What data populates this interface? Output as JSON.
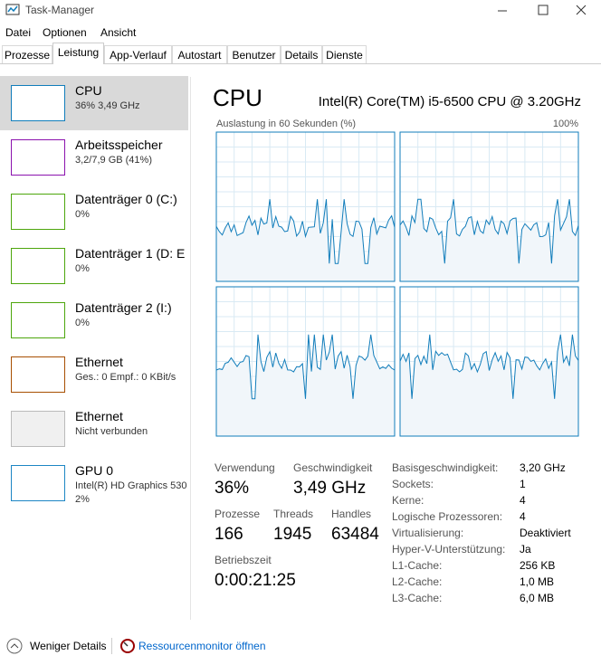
{
  "window": {
    "title": "Task-Manager"
  },
  "menu": [
    "Datei",
    "Optionen",
    "Ansicht"
  ],
  "tabs": [
    "Prozesse",
    "Leistung",
    "App-Verlauf",
    "Autostart",
    "Benutzer",
    "Details",
    "Dienste"
  ],
  "sidebar": [
    {
      "name": "CPU",
      "details": [
        "36% 3,49 GHz"
      ]
    },
    {
      "name": "Arbeitsspeicher",
      "details": [
        "3,2/7,9 GB (41%)"
      ]
    },
    {
      "name": "Datenträger 0 (C:)",
      "details": [
        "0%"
      ]
    },
    {
      "name": "Datenträger 1 (D: E",
      "details": [
        "0%"
      ]
    },
    {
      "name": "Datenträger 2 (I:)",
      "details": [
        "0%"
      ]
    },
    {
      "name": "Ethernet",
      "details": [
        "Ges.: 0 Empf.: 0 KBit/s"
      ]
    },
    {
      "name": "Ethernet",
      "details": [
        "Nicht verbunden"
      ]
    },
    {
      "name": "GPU 0",
      "details": [
        "Intel(R) HD Graphics 530",
        "2%"
      ]
    }
  ],
  "main": {
    "title": "CPU",
    "processor": "Intel(R) Core(TM) i5-6500 CPU @ 3.20GHz",
    "graph_label": "Auslastung in 60 Sekunden (%)",
    "graph_max": "100%",
    "stats": [
      {
        "label": "Verwendung",
        "value": "36%"
      },
      {
        "label": "Geschwindigkeit",
        "value": "3,49 GHz"
      },
      {
        "label": "Prozesse",
        "value": 166
      },
      {
        "label": "Threads",
        "value": 1945
      },
      {
        "label": "Handles",
        "value": 63484
      },
      {
        "label": "Betriebszeit",
        "value": "0:00:21:25"
      }
    ],
    "info": [
      [
        "Basisgeschwindigkeit:",
        "3,20 GHz"
      ],
      [
        "Sockets:",
        "1"
      ],
      [
        "Kerne:",
        "4"
      ],
      [
        "Logische Prozessoren:",
        "4"
      ],
      [
        "Virtualisierung:",
        "Deaktiviert"
      ],
      [
        "Hyper-V-Unterstützung:",
        "Ja"
      ],
      [
        "L1-Cache:",
        "256 KB"
      ],
      [
        "L2-Cache:",
        "1,0 MB"
      ],
      [
        "L3-Cache:",
        "6,0 MB"
      ]
    ]
  },
  "footer": {
    "less": "Weniger Details",
    "monitor": "Ressourcenmonitor öffnen"
  }
}
